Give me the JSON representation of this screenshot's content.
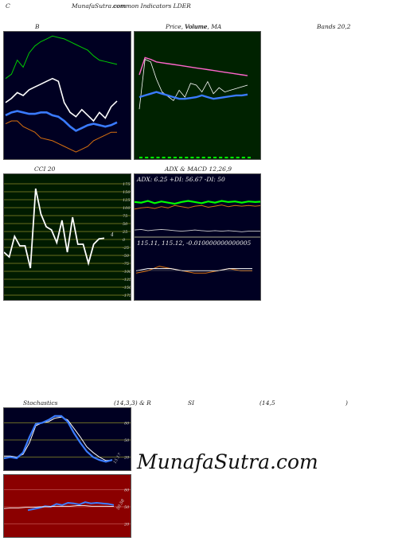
{
  "header": {
    "left_letter": "C",
    "site_title": "MunafaSutra.com",
    "title_overlap": "common Indicators LDER"
  },
  "labels": {
    "bands_b": "B",
    "price_volume_ma": "Price, Volume, MA",
    "price_overlap": "Volume",
    "bands": "Bands 20,2",
    "cci": "CCI 20",
    "adx_macd": "ADX & MACD 12,26,9",
    "stochastics": "Stochastics",
    "stoch_params": "(14,3,3) & R",
    "rsi": "SI",
    "rsi_params": "(14,5",
    "rsi_close": ")"
  },
  "cci_axis": [
    "175",
    "150",
    "125",
    "100",
    "75",
    "50",
    "25",
    "0",
    "-25",
    "-50",
    "-75",
    "-100",
    "-125",
    "-150",
    "-175"
  ],
  "adx": {
    "readout": "ADX: 6.25 +DI: 56.67 -DI: 50"
  },
  "macd": {
    "readout": "115.11, 115.12, -0.010000000000005"
  },
  "stoch_axis": [
    "80",
    "50",
    "20"
  ],
  "rsi_axis": [
    "80",
    "50",
    "20"
  ],
  "value_labels": {
    "cci_last": "4",
    "stoch_last": "15.17",
    "rsi_last": "50.58"
  },
  "watermark": "MunafaSutra.com",
  "colors": {
    "dark_panel": "#000022",
    "price_panel": "#002200",
    "cci_panel": "#001b00",
    "rsi_panel": "#8b0000",
    "green": "#00cc00",
    "bright_green": "#00ff00",
    "blue": "#3a7bff",
    "orange": "#d9700f",
    "white": "#ffffff",
    "pink": "#ff66cc",
    "olive": "#8a8a28"
  },
  "chart_data": [
    {
      "type": "line",
      "title": "B",
      "series": [
        {
          "values": [
            72,
            75,
            85,
            80,
            90,
            95,
            98,
            100,
            102,
            101,
            100,
            98,
            96,
            94,
            92,
            88,
            85,
            84,
            83,
            82
          ]
        },
        {
          "values": [
            55,
            58,
            62,
            60,
            64,
            66,
            68,
            70,
            72,
            70,
            55,
            48,
            45,
            50,
            46,
            42,
            48,
            44,
            52,
            56
          ]
        },
        {
          "values": [
            46,
            48,
            49,
            48,
            47,
            47,
            48,
            48,
            46,
            45,
            42,
            38,
            35,
            37,
            39,
            40,
            39,
            38,
            39,
            41
          ]
        },
        {
          "values": [
            40,
            42,
            42,
            38,
            36,
            34,
            30,
            29,
            28,
            26,
            24,
            22,
            20,
            22,
            24,
            28,
            30,
            32,
            34,
            34
          ]
        }
      ]
    },
    {
      "type": "line",
      "title": "Price, Volume, MA",
      "series": [
        {
          "values": [
            100,
            120,
            118,
            115,
            114,
            113,
            112,
            111,
            110,
            109,
            108,
            107,
            106,
            105,
            104,
            103,
            102,
            101,
            100,
            99
          ]
        },
        {
          "values": [
            60,
            118,
            115,
            95,
            80,
            75,
            70,
            82,
            74,
            90,
            88,
            80,
            92,
            78,
            85,
            80,
            82,
            84,
            86,
            88
          ]
        },
        {
          "values": [
            74,
            76,
            78,
            80,
            78,
            76,
            74,
            72,
            72,
            73,
            74,
            76,
            74,
            72,
            73,
            74,
            75,
            76,
            76,
            77
          ]
        },
        {
          "values": [
            10,
            10,
            10,
            10,
            10,
            10,
            10,
            10,
            10,
            10,
            10,
            10,
            10,
            10,
            10,
            10,
            10,
            10,
            10,
            10
          ]
        }
      ]
    },
    {
      "type": "line",
      "title": "CCI 20",
      "ylim": [
        -175,
        175
      ],
      "series": [
        {
          "values": [
            -40,
            -55,
            10,
            -20,
            -20,
            -90,
            160,
            80,
            40,
            30,
            -10,
            60,
            -40,
            70,
            -15,
            -15,
            -75,
            -15,
            2,
            4
          ]
        }
      ]
    },
    {
      "type": "line",
      "title": "ADX",
      "series": [
        {
          "values": [
            56,
            55,
            58,
            54,
            57,
            55,
            53,
            56,
            58,
            56,
            54,
            57,
            55,
            58,
            56,
            57,
            55,
            57,
            56,
            56.67
          ]
        },
        {
          "values": [
            44,
            46,
            47,
            45,
            48,
            46,
            50,
            48,
            46,
            49,
            50,
            47,
            49,
            51,
            48,
            50,
            49,
            50,
            49,
            50
          ]
        },
        {
          "values": [
            8,
            9,
            7,
            8,
            9,
            8,
            7,
            6,
            7,
            8,
            7,
            6,
            7,
            6,
            7,
            6,
            5,
            6,
            6,
            6.25
          ]
        }
      ]
    },
    {
      "type": "line",
      "title": "MACD",
      "series": [
        {
          "values": [
            115.1,
            115.11,
            115.13,
            115.12,
            115.11,
            115.1,
            115.1,
            115.11,
            115.12,
            115.11,
            115.11
          ]
        },
        {
          "values": [
            115.11,
            115.12,
            115.12,
            115.12,
            115.11,
            115.11,
            115.11,
            115.11,
            115.12,
            115.12,
            115.12
          ]
        }
      ]
    },
    {
      "type": "line",
      "title": "Stochastics",
      "ylim": [
        0,
        100
      ],
      "series": [
        {
          "values": [
            22,
            22,
            20,
            25,
            45,
            75,
            80,
            82,
            88,
            90,
            85,
            70,
            55,
            38,
            28,
            20,
            14,
            15
          ]
        },
        {
          "values": [
            18,
            20,
            18,
            28,
            55,
            78,
            80,
            85,
            92,
            92,
            82,
            62,
            45,
            30,
            20,
            15,
            12,
            15.17
          ]
        }
      ]
    },
    {
      "type": "line",
      "title": "RSI",
      "ylim": [
        0,
        100
      ],
      "series": [
        {
          "values": [
            44,
            46,
            48,
            51,
            50,
            55,
            53,
            57,
            56,
            54,
            58,
            56,
            57,
            56,
            55,
            53
          ]
        },
        {
          "values": [
            47,
            48,
            48,
            49,
            49,
            50,
            50,
            51,
            51,
            51,
            52,
            52,
            51,
            51,
            51,
            50.58
          ]
        }
      ]
    }
  ]
}
